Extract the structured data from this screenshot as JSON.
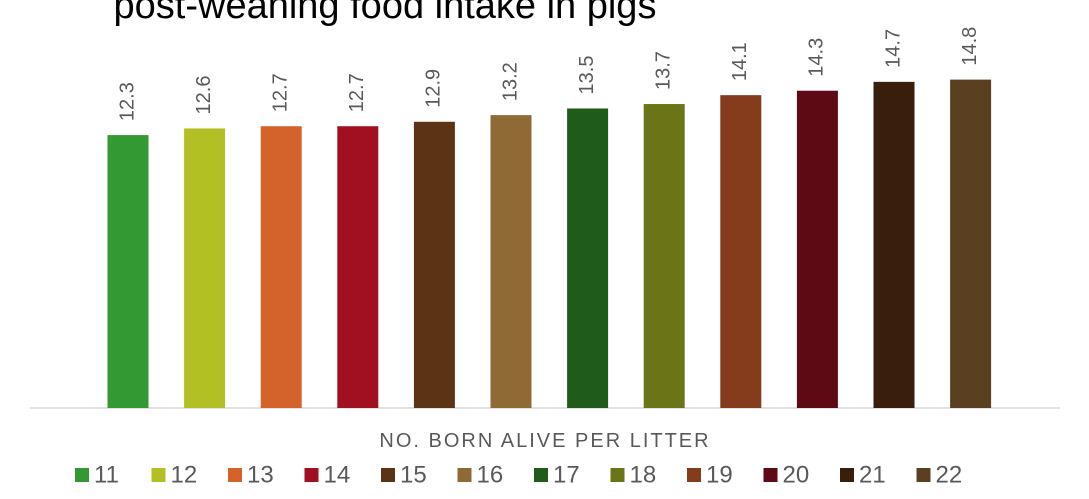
{
  "chart_data": {
    "type": "bar",
    "title": "post-weaning food intake in pigs",
    "x_label": "NO. BORN ALIVE PER LITTER",
    "ylim": [
      0,
      16
    ],
    "series": [
      {
        "name": "11",
        "color": "#339933",
        "values": [
          12.3
        ]
      },
      {
        "name": "12",
        "color": "#b3c024",
        "values": [
          12.6
        ]
      },
      {
        "name": "13",
        "color": "#d4622b",
        "values": [
          12.7
        ]
      },
      {
        "name": "14",
        "color": "#a01020",
        "values": [
          12.7
        ]
      },
      {
        "name": "15",
        "color": "#5c3314",
        "values": [
          12.9
        ]
      },
      {
        "name": "16",
        "color": "#906a34",
        "values": [
          13.2
        ]
      },
      {
        "name": "17",
        "color": "#1f5c1a",
        "values": [
          13.5
        ]
      },
      {
        "name": "18",
        "color": "#6b7518",
        "values": [
          13.7
        ]
      },
      {
        "name": "19",
        "color": "#843c1c",
        "values": [
          14.1
        ]
      },
      {
        "name": "20",
        "color": "#5e0a14",
        "values": [
          14.3
        ]
      },
      {
        "name": "21",
        "color": "#3a1e0c",
        "values": [
          14.7
        ]
      },
      {
        "name": "22",
        "color": "#5a4020",
        "values": [
          14.8
        ]
      }
    ]
  }
}
